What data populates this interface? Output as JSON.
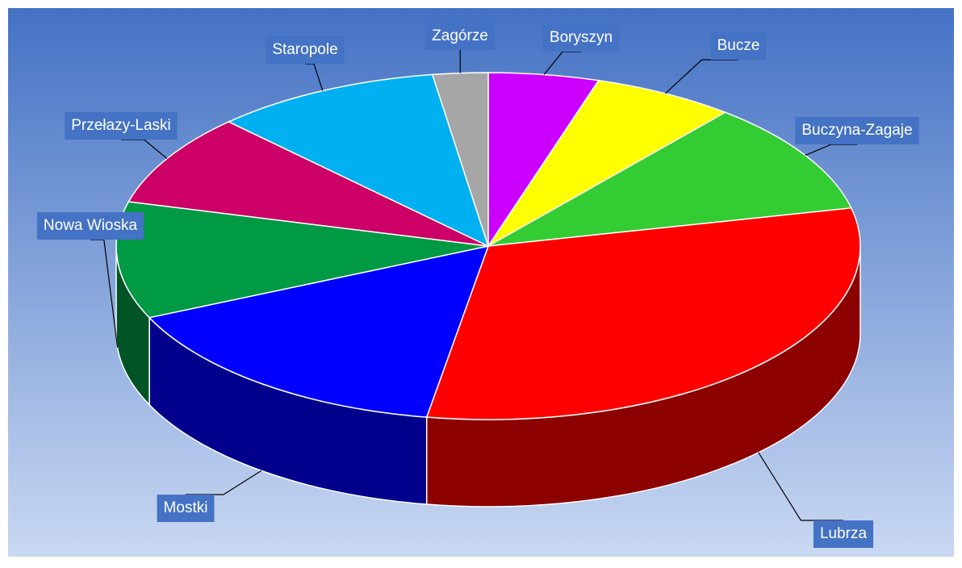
{
  "chart_data": {
    "type": "pie",
    "categories": [
      "Boryszyn",
      "Bucze",
      "Buczyna-Zagaje",
      "Lubrza",
      "Mostki",
      "Nowa Wioska",
      "Przełazy-Laski",
      "Staropole",
      "Zagórze"
    ],
    "values": [
      4.8,
      6.2,
      10.5,
      31.2,
      15.6,
      10.9,
      8.6,
      9.9,
      2.4
    ],
    "colors": [
      "#cc00ff",
      "#ffff00",
      "#33cc33",
      "#ff0000",
      "#0000ff",
      "#009944",
      "#cc0066",
      "#00b0f0",
      "#a6a6a6"
    ],
    "legend": false
  }
}
